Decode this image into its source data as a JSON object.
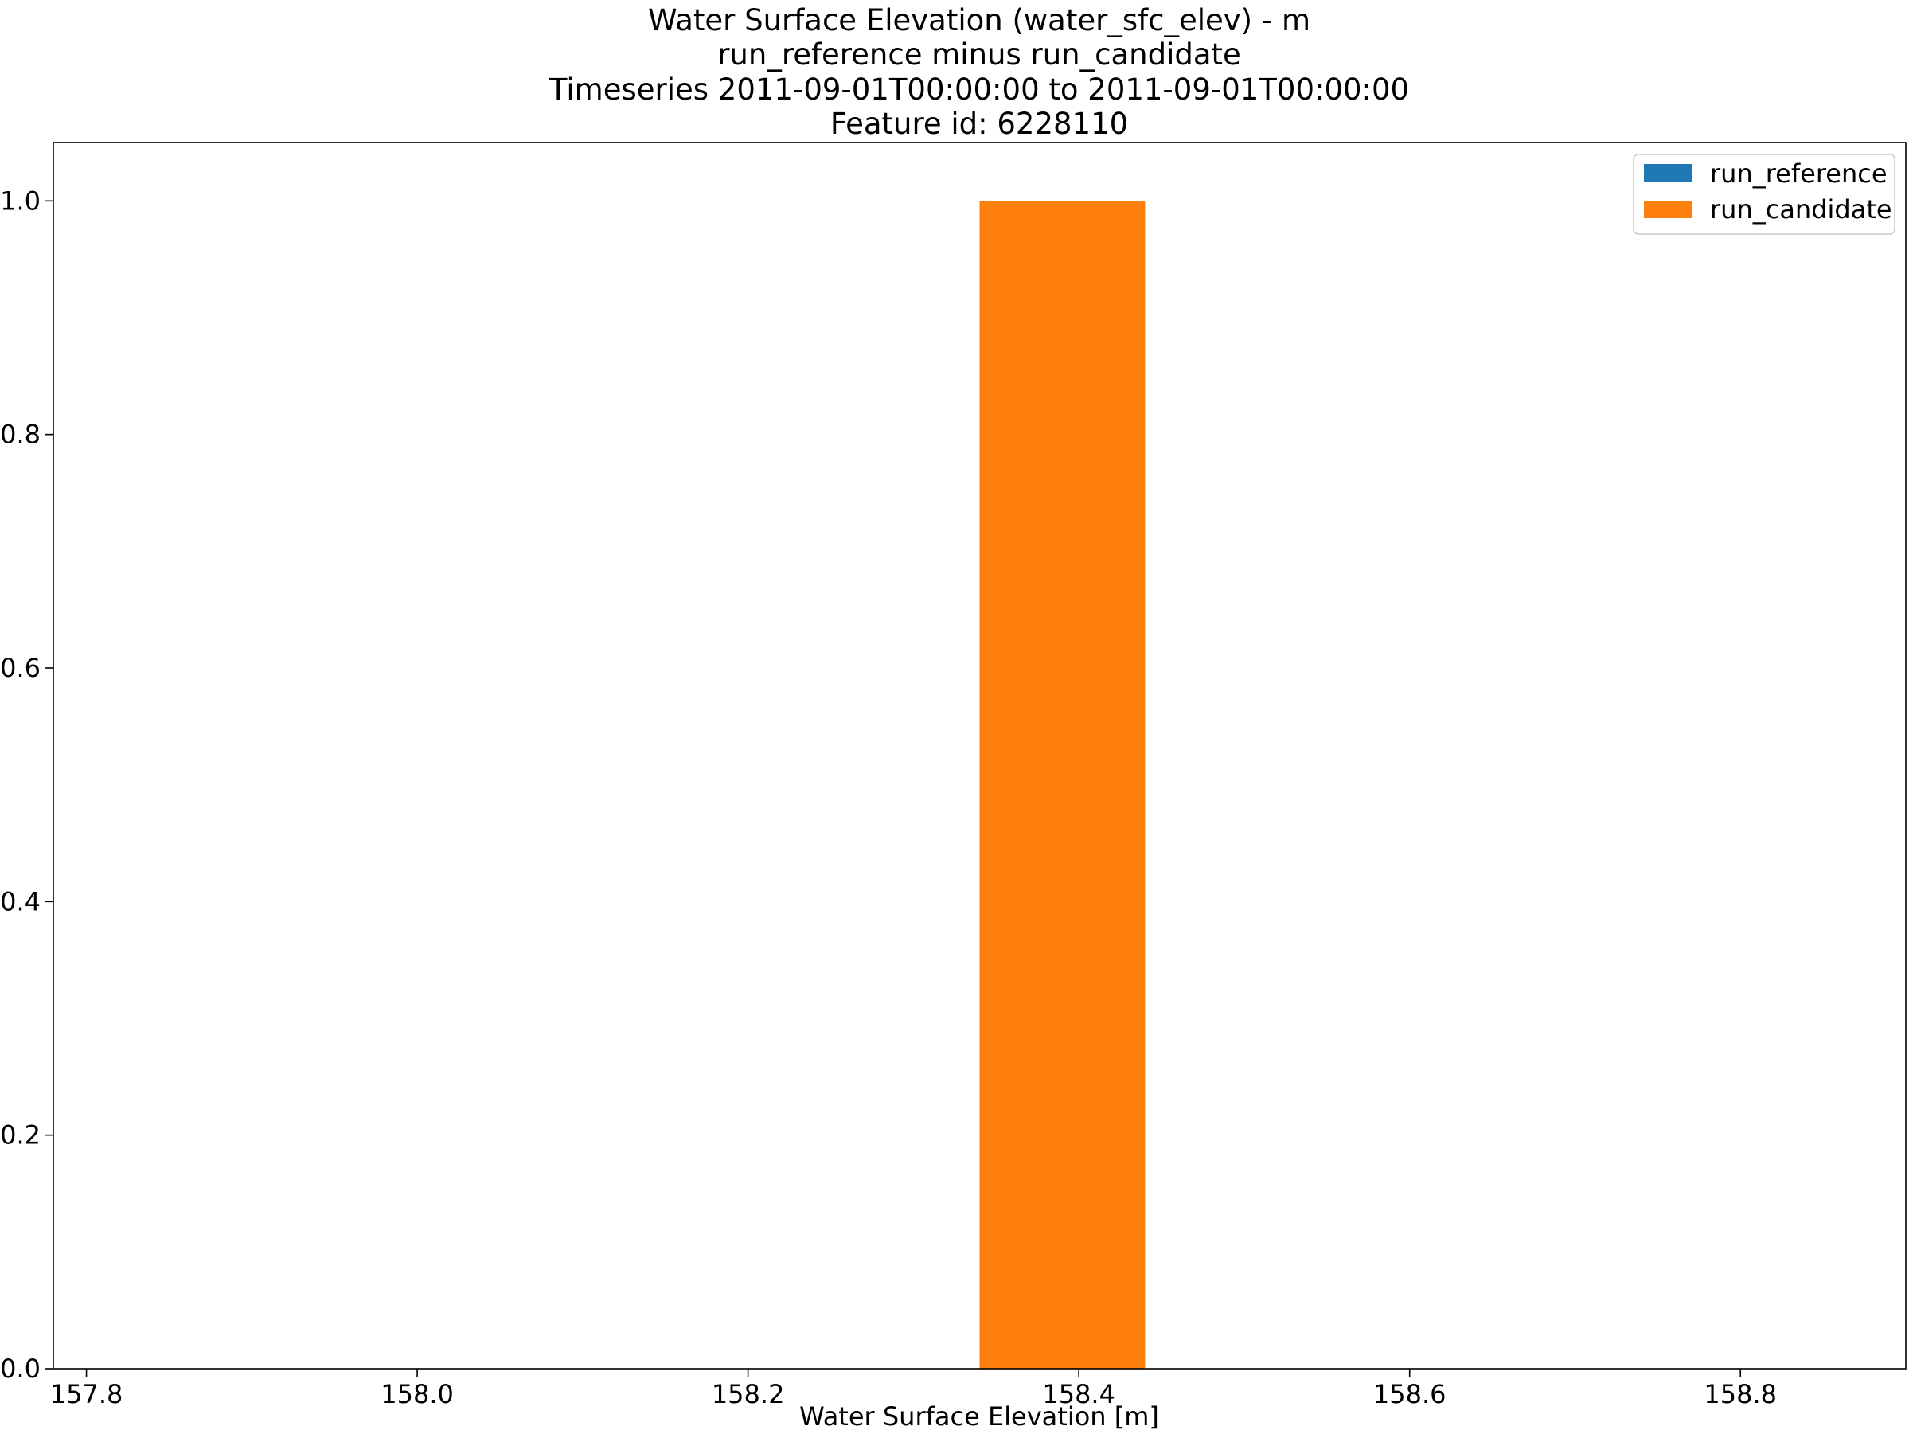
{
  "chart_data": {
    "type": "bar",
    "title_lines": [
      "Water Surface Elevation (water_sfc_elev) - m",
      "run_reference minus run_candidate",
      "Timeseries 2011-09-01T00:00:00 to 2011-09-01T00:00:00",
      "Feature id: 6228110"
    ],
    "xlabel": "Water Surface Elevation [m]",
    "ylabel": "",
    "xlim": [
      157.78,
      158.9
    ],
    "ylim": [
      0,
      1.05
    ],
    "xticks": [
      "157.8",
      "158.0",
      "158.2",
      "158.4",
      "158.6",
      "158.8"
    ],
    "yticks": [
      "0.0",
      "0.2",
      "0.4",
      "0.6",
      "0.8",
      "1.0"
    ],
    "grid": false,
    "legend_position": "top-right",
    "series": [
      {
        "name": "run_reference",
        "color": "#1f77b4",
        "bars": [
          {
            "x0": 158.34,
            "x1": 158.44,
            "value": 1.0
          }
        ]
      },
      {
        "name": "run_candidate",
        "color": "#ff7f0e",
        "bars": [
          {
            "x0": 158.34,
            "x1": 158.44,
            "value": 1.0
          }
        ]
      }
    ]
  }
}
